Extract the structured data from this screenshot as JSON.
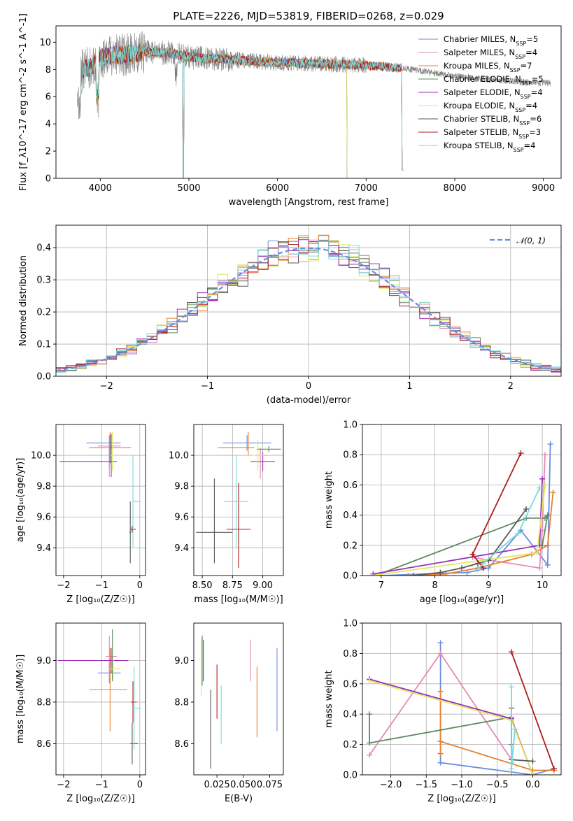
{
  "colors": {
    "Chabrier MILES": "#6a8de0",
    "Salpeter MILES": "#e68ab8",
    "Kroupa MILES": "#e8802e",
    "Chabrier ELODIE": "#5f8a63",
    "Salpeter ELODIE": "#9a2fb8",
    "Kroupa ELODIE": "#dfe85e",
    "Chabrier STELIB": "#595959",
    "Salpeter STELIB": "#b01c1c",
    "Kroupa STELIB": "#79dbdb",
    "data": "#808080",
    "normal_curve": "#6a8de0",
    "grid": "#b0b0b0"
  },
  "chart_data": [
    {
      "id": "spectrum",
      "type": "line",
      "title": "PLATE=2226, MJD=53819, FIBERID=0268, z=0.029",
      "xlabel": "wavelength [Angstrom, rest frame]",
      "ylabel": "Flux [f_λ10^-17 erg cm^-2 s^-1 A^-1]",
      "xlim": [
        3500,
        9200
      ],
      "ylim": [
        0,
        11.2
      ],
      "xticks": [
        4000,
        5000,
        6000,
        7000,
        8000,
        9000
      ],
      "yticks": [
        0,
        2,
        4,
        6,
        8,
        10
      ],
      "grid": false,
      "legend_position": "top-right",
      "legend": [
        {
          "name": "Chabrier MILES",
          "nssp": "5"
        },
        {
          "name": "Salpeter MILES",
          "nssp": "4"
        },
        {
          "name": "Kroupa MILES",
          "nssp": "7"
        },
        {
          "name": "Chabrier ELODIE",
          "nssp": "5"
        },
        {
          "name": "Salpeter ELODIE",
          "nssp": "4"
        },
        {
          "name": "Kroupa ELODIE",
          "nssp": "4"
        },
        {
          "name": "Chabrier STELIB",
          "nssp": "6"
        },
        {
          "name": "Salpeter STELIB",
          "nssp": "3"
        },
        {
          "name": "Kroupa STELIB",
          "nssp": "4"
        }
      ],
      "data_wavelength_range": [
        3740,
        9080
      ],
      "model_wavelength_ranges": {
        "MILES": [
          3740,
          7420
        ],
        "ELODIE": [
          3900,
          6800
        ],
        "STELIB": [
          3740,
          7420
        ]
      },
      "continuum_knots": {
        "x": [
          3740,
          3800,
          3900,
          4000,
          4100,
          4300,
          4500,
          4800,
          5000,
          5500,
          6000,
          6500,
          7000,
          7400,
          8000,
          8500,
          9000
        ],
        "y": [
          7.0,
          8.0,
          8.2,
          8.8,
          9.0,
          9.1,
          9.3,
          9.2,
          8.9,
          8.7,
          8.5,
          8.4,
          8.3,
          8.1,
          7.5,
          7.2,
          7.0
        ]
      }
    },
    {
      "id": "residuals",
      "type": "line",
      "xlabel": "(data-model)/error",
      "ylabel": "Normed distribution",
      "xlim": [
        -2.5,
        2.5
      ],
      "ylim": [
        0,
        0.47
      ],
      "xticks": [
        -2,
        -1,
        0,
        1,
        2
      ],
      "yticks": [
        0.0,
        0.1,
        0.2,
        0.3,
        0.4
      ],
      "grid": true,
      "legend_position": "top-right",
      "legend": [
        "𝒩(0, 1)"
      ],
      "bin_width": 0.1,
      "bin_start": -2.5,
      "histograms": [
        {
          "model": "Chabrier MILES",
          "noise_seed": 1
        },
        {
          "model": "Salpeter MILES",
          "noise_seed": 2
        },
        {
          "model": "Kroupa MILES",
          "noise_seed": 3
        },
        {
          "model": "Chabrier ELODIE",
          "noise_seed": 4
        },
        {
          "model": "Salpeter ELODIE",
          "noise_seed": 5
        },
        {
          "model": "Kroupa ELODIE",
          "noise_seed": 6
        },
        {
          "model": "Chabrier STELIB",
          "noise_seed": 7
        },
        {
          "model": "Salpeter STELIB",
          "noise_seed": 8
        },
        {
          "model": "Kroupa STELIB",
          "noise_seed": 9
        }
      ]
    },
    {
      "id": "age_vs_Z",
      "type": "scatter",
      "xlabel": "Z [log₁₀(Z/Z☉)]",
      "ylabel": "age  [log₁₀(age/yr)]",
      "xlim": [
        -2.2,
        0.15
      ],
      "ylim": [
        9.22,
        10.2
      ],
      "xticks": [
        -2,
        -1,
        0
      ],
      "yticks": [
        9.4,
        9.6,
        9.8,
        10.0
      ],
      "grid": true,
      "points": [
        {
          "model": "Chabrier MILES",
          "x": -0.8,
          "y": 10.08,
          "xerr": [
            0.6,
            0.3
          ],
          "yerr": [
            0.15,
            0.05
          ]
        },
        {
          "model": "Salpeter MILES",
          "x": -0.8,
          "y": 10.06,
          "xerr": [
            0.3,
            0.3
          ],
          "yerr": [
            0.2,
            0.06
          ]
        },
        {
          "model": "Kroupa MILES",
          "x": -0.78,
          "y": 10.05,
          "xerr": [
            0.55,
            0.55
          ],
          "yerr": [
            0.07,
            0.1
          ]
        },
        {
          "model": "Chabrier ELODIE",
          "x": -0.78,
          "y": 10.05,
          "xerr": [
            0.02,
            0.02
          ],
          "yerr": [
            0.1,
            0.08
          ]
        },
        {
          "model": "Salpeter ELODIE",
          "x": -0.75,
          "y": 9.96,
          "xerr": [
            1.35,
            0.15
          ],
          "yerr": [
            0.1,
            0.18
          ]
        },
        {
          "model": "Kroupa ELODIE",
          "x": -0.72,
          "y": 10.0,
          "xerr": [
            0.05,
            0.05
          ],
          "yerr": [
            0.1,
            0.15
          ]
        },
        {
          "model": "Chabrier STELIB",
          "x": -0.25,
          "y": 9.5,
          "xerr": [
            0.02,
            0.02
          ],
          "yerr": [
            0.2,
            0.2
          ]
        },
        {
          "model": "Salpeter STELIB",
          "x": -0.2,
          "y": 9.52,
          "xerr": [
            0.05,
            0.1
          ],
          "yerr": [
            0.02,
            0.02
          ]
        },
        {
          "model": "Kroupa STELIB",
          "x": -0.18,
          "y": 9.7,
          "xerr": [
            0.02,
            0.2
          ],
          "yerr": [
            0.3,
            0.3
          ]
        }
      ]
    },
    {
      "id": "age_vs_mass",
      "type": "scatter",
      "xlabel": "mass [log₁₀(M/M☉)]",
      "ylabel": "",
      "xlim": [
        8.43,
        9.17
      ],
      "ylim": [
        9.22,
        10.2
      ],
      "xticks": [
        8.5,
        8.75,
        9.0
      ],
      "xticklabels": [
        "8.50",
        "8.75",
        "9.00"
      ],
      "yticks": [
        9.4,
        9.6,
        9.8,
        10.0
      ],
      "grid": true,
      "points": [
        {
          "model": "Chabrier MILES",
          "x": 8.87,
          "y": 10.08,
          "xerr": [
            0.2,
            0.2
          ],
          "yerr": [
            0.05,
            0.05
          ]
        },
        {
          "model": "Salpeter MILES",
          "x": 8.98,
          "y": 10.0,
          "xerr": [
            0.05,
            0.05
          ],
          "yerr": [
            0.15,
            0.05
          ]
        },
        {
          "model": "Kroupa MILES",
          "x": 8.88,
          "y": 10.05,
          "xerr": [
            0.25,
            0.05
          ],
          "yerr": [
            0.05,
            0.1
          ]
        },
        {
          "model": "Chabrier ELODIE",
          "x": 9.05,
          "y": 10.04,
          "xerr": [
            0.1,
            0.1
          ],
          "yerr": [
            0.02,
            0.02
          ]
        },
        {
          "model": "Salpeter ELODIE",
          "x": 9.0,
          "y": 9.96,
          "xerr": [
            0.1,
            0.1
          ],
          "yerr": [
            0.06,
            0.06
          ]
        },
        {
          "model": "Kroupa ELODIE",
          "x": 8.96,
          "y": 10.0,
          "xerr": [
            0.05,
            0.05
          ],
          "yerr": [
            0.1,
            0.1
          ]
        },
        {
          "model": "Chabrier STELIB",
          "x": 8.6,
          "y": 9.5,
          "xerr": [
            0.15,
            0.15
          ],
          "yerr": [
            0.2,
            0.35
          ]
        },
        {
          "model": "Salpeter STELIB",
          "x": 8.8,
          "y": 9.52,
          "xerr": [
            0.1,
            0.1
          ],
          "yerr": [
            0.25,
            0.3
          ]
        },
        {
          "model": "Kroupa STELIB",
          "x": 8.78,
          "y": 9.7,
          "xerr": [
            0.1,
            0.1
          ],
          "yerr": [
            0.3,
            0.3
          ]
        }
      ]
    },
    {
      "id": "weight_vs_age",
      "type": "line",
      "xlabel": "age  [log₁₀(age/yr)]",
      "ylabel": "mass weight",
      "xlim": [
        6.65,
        10.35
      ],
      "ylim": [
        0,
        1.0
      ],
      "xticks": [
        7,
        8,
        9,
        10
      ],
      "yticks": [
        0.0,
        0.2,
        0.4,
        0.6,
        0.8,
        1.0
      ],
      "grid": true,
      "series": [
        {
          "model": "Chabrier MILES",
          "x": [
            10.15,
            10.1,
            9.6,
            9.0,
            8.6,
            7.0
          ],
          "y": [
            0.87,
            0.07,
            0.3,
            0.05,
            0.02,
            0.0
          ]
        },
        {
          "model": "Salpeter MILES",
          "x": [
            10.05,
            10.0,
            9.95,
            8.7
          ],
          "y": [
            0.8,
            0.3,
            0.05,
            0.12
          ]
        },
        {
          "model": "Kroupa MILES",
          "x": [
            10.2,
            10.1,
            9.8,
            8.8,
            8.2,
            7.5
          ],
          "y": [
            0.55,
            0.2,
            0.14,
            0.05,
            0.01,
            0.0
          ]
        },
        {
          "model": "Chabrier ELODIE",
          "x": [
            10.0,
            10.1,
            10.05,
            9.7,
            6.9
          ],
          "y": [
            0.2,
            0.4,
            0.38,
            0.38,
            0.0
          ]
        },
        {
          "model": "Salpeter ELODIE",
          "x": [
            10.0,
            9.95,
            6.85
          ],
          "y": [
            0.64,
            0.2,
            0.01
          ]
        },
        {
          "model": "Kroupa ELODIE",
          "x": [
            10.05,
            9.9,
            6.82
          ],
          "y": [
            0.6,
            0.15,
            0.0
          ]
        },
        {
          "model": "Chabrier STELIB",
          "x": [
            9.7,
            9.0,
            8.8,
            8.5,
            8.1,
            7.6
          ],
          "y": [
            0.44,
            0.1,
            0.08,
            0.05,
            0.02,
            0.0
          ]
        },
        {
          "model": "Salpeter STELIB",
          "x": [
            9.6,
            8.7,
            8.9
          ],
          "y": [
            0.81,
            0.14,
            0.05
          ]
        },
        {
          "model": "Kroupa STELIB",
          "x": [
            9.95,
            9.55,
            8.9,
            8.8
          ],
          "y": [
            0.58,
            0.28,
            0.08,
            0.04
          ]
        }
      ]
    },
    {
      "id": "mass_vs_Z",
      "type": "scatter",
      "xlabel": "Z [log₁₀(Z/Z☉)]",
      "ylabel": "mass [log₁₀(M/M☉)]",
      "xlim": [
        -2.2,
        0.15
      ],
      "ylim": [
        8.45,
        9.18
      ],
      "xticks": [
        -2,
        -1,
        0
      ],
      "yticks": [
        8.6,
        8.8,
        9.0
      ],
      "grid": true,
      "points": [
        {
          "model": "Chabrier MILES",
          "x": -0.8,
          "y": 8.94,
          "xerr": [
            0.3,
            0.3
          ],
          "yerr": [
            0.05,
            0.05
          ]
        },
        {
          "model": "Salpeter MILES",
          "x": -0.8,
          "y": 9.02,
          "xerr": [
            0.1,
            0.2
          ],
          "yerr": [
            0.1,
            0.1
          ]
        },
        {
          "model": "Kroupa MILES",
          "x": -0.78,
          "y": 8.86,
          "xerr": [
            0.55,
            0.45
          ],
          "yerr": [
            0.2,
            0.2
          ]
        },
        {
          "model": "Chabrier ELODIE",
          "x": -0.72,
          "y": 9.0,
          "xerr": [
            0.02,
            0.02
          ],
          "yerr": [
            0.1,
            0.15
          ]
        },
        {
          "model": "Salpeter ELODIE",
          "x": -0.75,
          "y": 9.0,
          "xerr": [
            1.4,
            0.45
          ],
          "yerr": [
            0.06,
            0.06
          ]
        },
        {
          "model": "Kroupa ELODIE",
          "x": -0.7,
          "y": 8.96,
          "xerr": [
            0.1,
            0.2
          ],
          "yerr": [
            0.05,
            0.05
          ]
        },
        {
          "model": "Chabrier STELIB",
          "x": -0.2,
          "y": 8.6,
          "xerr": [
            0.05,
            0.15
          ],
          "yerr": [
            0.1,
            0.1
          ]
        },
        {
          "model": "Salpeter STELIB",
          "x": -0.18,
          "y": 8.8,
          "xerr": [
            0.05,
            0.1
          ],
          "yerr": [
            0.1,
            0.1
          ]
        },
        {
          "model": "Kroupa STELIB",
          "x": -0.15,
          "y": 8.77,
          "xerr": [
            0.05,
            0.2
          ],
          "yerr": [
            0.2,
            0.2
          ]
        }
      ]
    },
    {
      "id": "mass_vs_ebv",
      "type": "scatter",
      "xlabel": "E(B-V)",
      "ylabel": "",
      "xlim": [
        0.003,
        0.088
      ],
      "ylim": [
        8.45,
        9.18
      ],
      "xticks": [
        0.025,
        0.05,
        0.075
      ],
      "xticklabels": [
        "0.025",
        "0.050",
        "0.075"
      ],
      "yticks": [
        8.6,
        8.8,
        9.0
      ],
      "grid": false,
      "points": [
        {
          "model": "Chabrier MILES",
          "x": 0.082,
          "y": 8.86,
          "yerr": [
            0.2,
            0.2
          ]
        },
        {
          "model": "Salpeter MILES",
          "x": 0.057,
          "y": 9.0,
          "yerr": [
            0.1,
            0.1
          ]
        },
        {
          "model": "Kroupa MILES",
          "x": 0.063,
          "y": 8.8,
          "yerr": [
            0.17,
            0.17
          ]
        },
        {
          "model": "Chabrier ELODIE",
          "x": 0.011,
          "y": 9.0,
          "yerr": [
            0.12,
            0.12
          ]
        },
        {
          "model": "Salpeter ELODIE",
          "x": 0.012,
          "y": 9.0,
          "yerr": [
            0.1,
            0.1
          ]
        },
        {
          "model": "Kroupa ELODIE",
          "x": 0.01,
          "y": 8.97,
          "yerr": [
            0.14,
            0.14
          ]
        },
        {
          "model": "Chabrier STELIB",
          "x": 0.019,
          "y": 8.67,
          "yerr": [
            0.19,
            0.19
          ]
        },
        {
          "model": "Salpeter STELIB",
          "x": 0.025,
          "y": 8.85,
          "yerr": [
            0.13,
            0.13
          ]
        },
        {
          "model": "Kroupa STELIB",
          "x": 0.029,
          "y": 8.74,
          "yerr": [
            0.14,
            0.14
          ]
        }
      ]
    },
    {
      "id": "weight_vs_Z",
      "type": "line",
      "xlabel": "Z [log₁₀(Z/Z☉)]",
      "ylabel": "mass weight",
      "xlim": [
        -2.4,
        0.4
      ],
      "ylim": [
        0,
        1.0
      ],
      "xticks": [
        -2.0,
        -1.5,
        -1.0,
        -0.5,
        0.0
      ],
      "xticklabels": [
        "−2.0",
        "−1.5",
        "−1.0",
        "−0.5",
        "0.0"
      ],
      "yticks": [
        0.0,
        0.2,
        0.4,
        0.6,
        0.8,
        1.0
      ],
      "grid": true,
      "series": [
        {
          "model": "Chabrier MILES",
          "x": [
            -1.3,
            -1.3,
            0.0,
            0.3
          ],
          "y": [
            0.87,
            0.08,
            0.0,
            0.04
          ]
        },
        {
          "model": "Salpeter MILES",
          "x": [
            -2.3,
            -1.3,
            -0.3,
            -0.3
          ],
          "y": [
            0.13,
            0.8,
            0.1,
            0.02
          ]
        },
        {
          "model": "Kroupa MILES",
          "x": [
            -1.3,
            -1.3,
            -1.3,
            0.0,
            0.3
          ],
          "y": [
            0.55,
            0.14,
            0.22,
            0.03,
            0.03
          ]
        },
        {
          "model": "Chabrier ELODIE",
          "x": [
            -2.3,
            -2.3,
            -0.3,
            -0.3
          ],
          "y": [
            0.4,
            0.21,
            0.38,
            0.2
          ]
        },
        {
          "model": "Salpeter ELODIE",
          "x": [
            -2.3,
            -0.3,
            0.0
          ],
          "y": [
            0.63,
            0.37,
            0.0
          ]
        },
        {
          "model": "Kroupa ELODIE",
          "x": [
            -2.3,
            -0.3,
            0.0
          ],
          "y": [
            0.62,
            0.36,
            0.0
          ]
        },
        {
          "model": "Chabrier STELIB",
          "x": [
            -0.3,
            -0.3,
            0.0
          ],
          "y": [
            0.44,
            0.1,
            0.09
          ]
        },
        {
          "model": "Salpeter STELIB",
          "x": [
            -0.3,
            0.3
          ],
          "y": [
            0.81,
            0.04
          ]
        },
        {
          "model": "Kroupa STELIB",
          "x": [
            -0.3,
            -0.3,
            -0.25,
            -0.3
          ],
          "y": [
            0.58,
            0.08,
            0.3,
            0.04
          ]
        }
      ]
    }
  ]
}
